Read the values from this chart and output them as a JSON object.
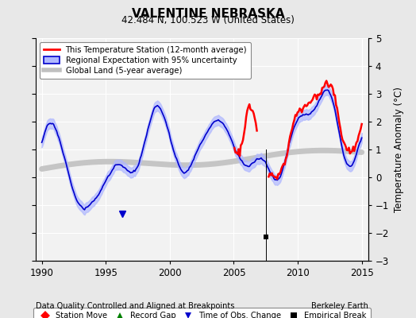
{
  "title": "VALENTINE NEBRASKA",
  "subtitle": "42.484 N, 100.523 W (United States)",
  "ylabel": "Temperature Anomaly (°C)",
  "xlabel_left": "Data Quality Controlled and Aligned at Breakpoints",
  "xlabel_right": "Berkeley Earth",
  "xlim": [
    1989.5,
    2015.5
  ],
  "ylim": [
    -3.0,
    5.0
  ],
  "yticks": [
    -3,
    -2,
    -1,
    0,
    1,
    2,
    3,
    4,
    5
  ],
  "xticks": [
    1990,
    1995,
    2000,
    2005,
    2010,
    2015
  ],
  "bg_color": "#e8e8e8",
  "plot_bg_color": "#f2f2f2",
  "empirical_break_x": 2007.5,
  "empirical_break_y": -2.15,
  "time_of_obs_x": 1996.3,
  "time_of_obs_y": -1.3,
  "legend1": [
    "This Temperature Station (12-month average)",
    "Regional Expectation with 95% uncertainty",
    "Global Land (5-year average)"
  ],
  "legend2_labels": [
    "Station Move",
    "Record Gap",
    "Time of Obs. Change",
    "Empirical Break"
  ]
}
